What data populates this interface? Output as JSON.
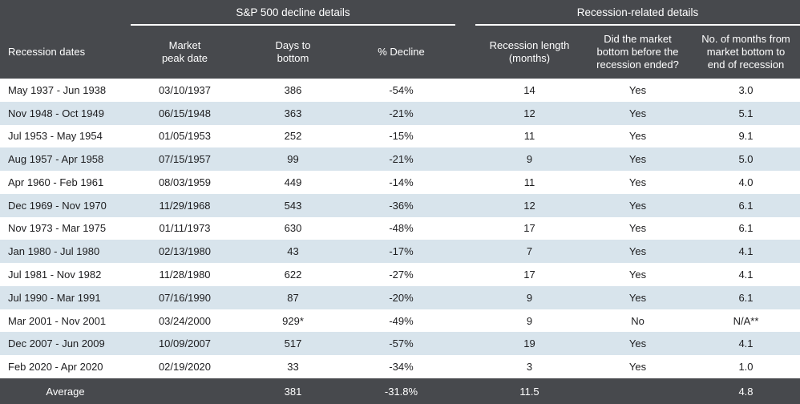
{
  "colors": {
    "header_bg": "#47494d",
    "stripe_bg": "#d8e4ec",
    "header_text": "#ffffff",
    "body_text": "#1d1d1f"
  },
  "table": {
    "group_headers": [
      {
        "label": "S&P 500 decline details"
      },
      {
        "label": "Recession-related details"
      }
    ],
    "columns": [
      {
        "label": "Recession dates"
      },
      {
        "label": "Market\npeak date"
      },
      {
        "label": "Days to\nbottom"
      },
      {
        "label": "% Decline"
      },
      {
        "label": "Recession length\n(months)"
      },
      {
        "label": "Did the market\nbottom before the\nrecession ended?"
      },
      {
        "label": "No. of months from\nmarket bottom to\nend of recession"
      }
    ],
    "rows": [
      {
        "dates": "May 1937 - Jun 1938",
        "peak": "03/10/1937",
        "days": "386",
        "decline": "-54%",
        "length": "14",
        "bottom_before": "Yes",
        "months": "3.0"
      },
      {
        "dates": "Nov 1948 - Oct 1949",
        "peak": "06/15/1948",
        "days": "363",
        "decline": "-21%",
        "length": "12",
        "bottom_before": "Yes",
        "months": "5.1"
      },
      {
        "dates": "Jul 1953 - May 1954",
        "peak": "01/05/1953",
        "days": "252",
        "decline": "-15%",
        "length": "11",
        "bottom_before": "Yes",
        "months": "9.1"
      },
      {
        "dates": "Aug 1957 - Apr 1958",
        "peak": "07/15/1957",
        "days": "99",
        "decline": "-21%",
        "length": "9",
        "bottom_before": "Yes",
        "months": "5.0"
      },
      {
        "dates": "Apr 1960 - Feb 1961",
        "peak": "08/03/1959",
        "days": "449",
        "decline": "-14%",
        "length": "11",
        "bottom_before": "Yes",
        "months": "4.0"
      },
      {
        "dates": "Dec 1969 - Nov 1970",
        "peak": "11/29/1968",
        "days": "543",
        "decline": "-36%",
        "length": "12",
        "bottom_before": "Yes",
        "months": "6.1"
      },
      {
        "dates": "Nov 1973 - Mar 1975",
        "peak": "01/11/1973",
        "days": "630",
        "decline": "-48%",
        "length": "17",
        "bottom_before": "Yes",
        "months": "6.1"
      },
      {
        "dates": "Jan 1980 - Jul 1980",
        "peak": "02/13/1980",
        "days": "43",
        "decline": "-17%",
        "length": "7",
        "bottom_before": "Yes",
        "months": "4.1"
      },
      {
        "dates": "Jul 1981 - Nov 1982",
        "peak": "11/28/1980",
        "days": "622",
        "decline": "-27%",
        "length": "17",
        "bottom_before": "Yes",
        "months": "4.1"
      },
      {
        "dates": "Jul 1990 - Mar 1991",
        "peak": "07/16/1990",
        "days": "87",
        "decline": "-20%",
        "length": "9",
        "bottom_before": "Yes",
        "months": "6.1"
      },
      {
        "dates": "Mar 2001 - Nov 2001",
        "peak": "03/24/2000",
        "days": "929*",
        "decline": "-49%",
        "length": "9",
        "bottom_before": "No",
        "months": "N/A**"
      },
      {
        "dates": "Dec 2007 - Jun 2009",
        "peak": "10/09/2007",
        "days": "517",
        "decline": "-57%",
        "length": "19",
        "bottom_before": "Yes",
        "months": "4.1"
      },
      {
        "dates": "Feb 2020 - Apr 2020",
        "peak": "02/19/2020",
        "days": "33",
        "decline": "-34%",
        "length": "3",
        "bottom_before": "Yes",
        "months": "1.0"
      }
    ],
    "average": {
      "label": "Average",
      "peak": "",
      "days": "381",
      "decline": "-31.8%",
      "length": "11.5",
      "bottom_before": "",
      "months": "4.8"
    }
  },
  "chart_data": {
    "type": "table",
    "title": "S&P 500 decline details / Recession-related details",
    "columns": [
      "Recession dates",
      "Market peak date",
      "Days to bottom",
      "% Decline",
      "Recession length (months)",
      "Did the market bottom before the recession ended?",
      "No. of months from market bottom to end of recession"
    ],
    "rows": [
      [
        "May 1937 - Jun 1938",
        "03/10/1937",
        386,
        -54,
        14,
        "Yes",
        3.0
      ],
      [
        "Nov 1948 - Oct 1949",
        "06/15/1948",
        363,
        -21,
        12,
        "Yes",
        5.1
      ],
      [
        "Jul 1953 - May 1954",
        "01/05/1953",
        252,
        -15,
        11,
        "Yes",
        9.1
      ],
      [
        "Aug 1957 - Apr 1958",
        "07/15/1957",
        99,
        -21,
        9,
        "Yes",
        5.0
      ],
      [
        "Apr 1960 - Feb 1961",
        "08/03/1959",
        449,
        -14,
        11,
        "Yes",
        4.0
      ],
      [
        "Dec 1969 - Nov 1970",
        "11/29/1968",
        543,
        -36,
        12,
        "Yes",
        6.1
      ],
      [
        "Nov 1973 - Mar 1975",
        "01/11/1973",
        630,
        -48,
        17,
        "Yes",
        6.1
      ],
      [
        "Jan 1980 - Jul 1980",
        "02/13/1980",
        43,
        -17,
        7,
        "Yes",
        4.1
      ],
      [
        "Jul 1981 - Nov 1982",
        "11/28/1980",
        622,
        -27,
        17,
        "Yes",
        4.1
      ],
      [
        "Jul 1990 - Mar 1991",
        "07/16/1990",
        87,
        -20,
        9,
        "Yes",
        6.1
      ],
      [
        "Mar 2001 - Nov 2001",
        "03/24/2000",
        "929*",
        -49,
        9,
        "No",
        "N/A**"
      ],
      [
        "Dec 2007 - Jun 2009",
        "10/09/2007",
        517,
        -57,
        19,
        "Yes",
        4.1
      ],
      [
        "Feb 2020 - Apr 2020",
        "02/19/2020",
        33,
        -34,
        3,
        "Yes",
        1.0
      ]
    ],
    "average_row": [
      "Average",
      null,
      381,
      -31.8,
      11.5,
      null,
      4.8
    ]
  }
}
